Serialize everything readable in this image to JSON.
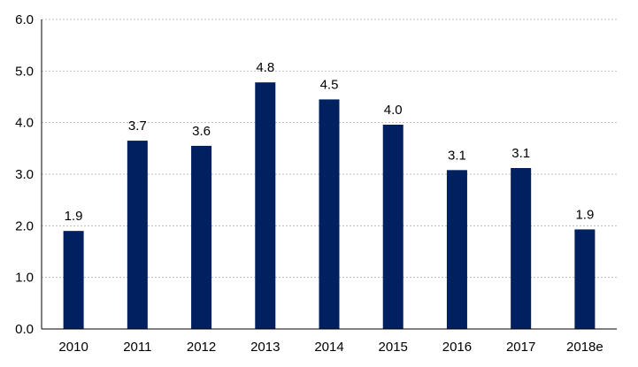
{
  "chart_data": {
    "type": "bar",
    "categories": [
      "2010",
      "2011",
      "2012",
      "2013",
      "2014",
      "2015",
      "2016",
      "2017",
      "2018e"
    ],
    "values": [
      1.9,
      3.65,
      3.55,
      4.78,
      4.45,
      3.96,
      3.08,
      3.12,
      1.93
    ],
    "data_labels": [
      "1.9",
      "3.7",
      "3.6",
      "4.8",
      "4.5",
      "4.0",
      "3.1",
      "3.1",
      "1.9"
    ],
    "yticks": [
      "0.0",
      "1.0",
      "2.0",
      "3.0",
      "4.0",
      "5.0",
      "6.0"
    ],
    "ylim": [
      0,
      6
    ],
    "grid": true,
    "title": "",
    "xlabel": "",
    "ylabel": "",
    "bar_color": "#002060",
    "grid_color": "#bfbfbf"
  }
}
